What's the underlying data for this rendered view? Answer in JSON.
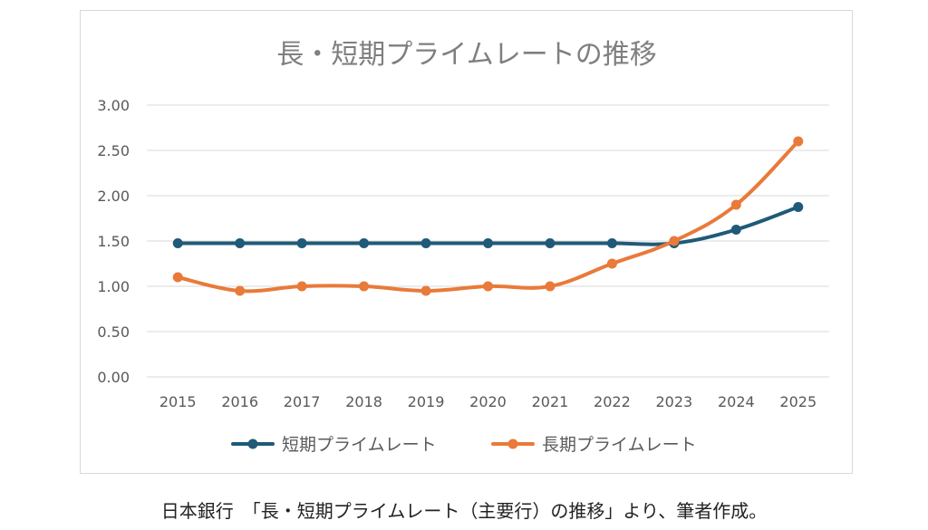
{
  "chart_data": {
    "type": "line",
    "title": "長・短期プライムレートの推移",
    "xlabel": "",
    "ylabel": "",
    "categories": [
      "2015",
      "2016",
      "2017",
      "2018",
      "2019",
      "2020",
      "2021",
      "2022",
      "2023",
      "2024",
      "2025"
    ],
    "ylim": [
      0,
      3
    ],
    "yticks": [
      "0.00",
      "0.50",
      "1.00",
      "1.50",
      "2.00",
      "2.50",
      "3.00"
    ],
    "grid": true,
    "legend": "bottom",
    "series": [
      {
        "name": "短期プライムレート",
        "color": "#1f5a78",
        "values": [
          1.475,
          1.475,
          1.475,
          1.475,
          1.475,
          1.475,
          1.475,
          1.475,
          1.475,
          1.625,
          1.875
        ]
      },
      {
        "name": "長期プライムレート",
        "color": "#e97a3a",
        "values": [
          1.1,
          0.95,
          1.0,
          1.0,
          0.95,
          1.0,
          1.0,
          1.25,
          1.5,
          1.9,
          2.6
        ]
      }
    ]
  },
  "caption": "日本銀行　「長・短期プライムレート（主要行）の推移」より、筆者作成。"
}
